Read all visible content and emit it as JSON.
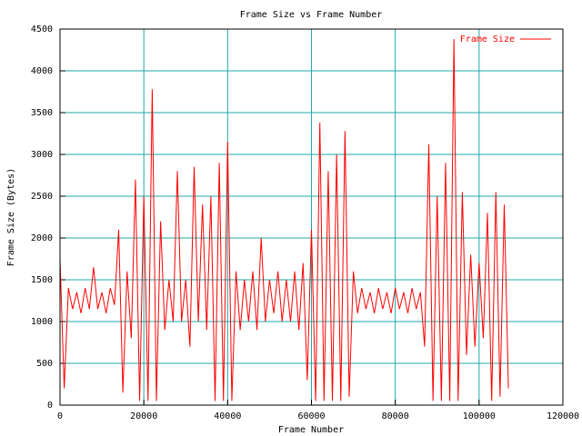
{
  "chart_data": {
    "type": "line",
    "title": "Frame Size vs Frame Number",
    "xlabel": "Frame Number",
    "ylabel": "Frame Size (Bytes)",
    "x": [
      0,
      1000,
      2000,
      3000,
      4000,
      5000,
      6000,
      7000,
      8000,
      9000,
      10000,
      11000,
      12000,
      13000,
      14000,
      15000,
      16000,
      17000,
      18000,
      19000,
      20000,
      21000,
      22000,
      23000,
      24000,
      25000,
      26000,
      27000,
      28000,
      29000,
      30000,
      31000,
      32000,
      33000,
      34000,
      35000,
      36000,
      37000,
      38000,
      39000,
      40000,
      41000,
      42000,
      43000,
      44000,
      45000,
      46000,
      47000,
      48000,
      49000,
      50000,
      51000,
      52000,
      53000,
      54000,
      55000,
      56000,
      57000,
      58000,
      59000,
      60000,
      61000,
      62000,
      63000,
      64000,
      65000,
      66000,
      67000,
      68000,
      69000,
      70000,
      71000,
      72000,
      73000,
      74000,
      75000,
      76000,
      77000,
      78000,
      79000,
      80000,
      81000,
      82000,
      83000,
      84000,
      85000,
      86000,
      87000,
      88000,
      89000,
      90000,
      91000,
      92000,
      93000,
      94000,
      95000,
      96000,
      97000,
      98000,
      99000,
      100000,
      101000,
      102000,
      103000,
      104000,
      105000,
      106000,
      107000
    ],
    "series": [
      {
        "name": "Frame Size",
        "color": "#ff0000",
        "values": [
          1750,
          200,
          1400,
          1150,
          1350,
          1100,
          1400,
          1150,
          1650,
          1150,
          1350,
          1100,
          1400,
          1200,
          2100,
          150,
          1600,
          800,
          2700,
          50,
          2500,
          50,
          3780,
          50,
          2200,
          900,
          1500,
          1000,
          2800,
          1000,
          1500,
          700,
          2850,
          1000,
          2400,
          900,
          2500,
          50,
          2900,
          50,
          3150,
          50,
          1600,
          900,
          1500,
          1000,
          1600,
          900,
          2000,
          1000,
          1500,
          1100,
          1600,
          1000,
          1500,
          1000,
          1600,
          900,
          1700,
          300,
          2100,
          50,
          3380,
          50,
          2800,
          50,
          3000,
          50,
          3280,
          100,
          1600,
          1100,
          1400,
          1150,
          1350,
          1100,
          1400,
          1150,
          1350,
          1100,
          1400,
          1150,
          1350,
          1100,
          1400,
          1150,
          1350,
          700,
          3120,
          50,
          2500,
          50,
          2900,
          50,
          4380,
          50,
          2550,
          600,
          1800,
          700,
          1700,
          800,
          2300,
          50,
          2550,
          100,
          2400,
          200
        ]
      }
    ],
    "xlim": [
      0,
      120000
    ],
    "xticks": [
      0,
      20000,
      40000,
      60000,
      80000,
      100000,
      120000
    ],
    "ylim": [
      0,
      4500
    ],
    "yticks": [
      0,
      500,
      1000,
      1500,
      2000,
      2500,
      3000,
      3500,
      4000,
      4500
    ],
    "grid": true,
    "grid_color": "#20a8a8",
    "legend": "top-right"
  }
}
